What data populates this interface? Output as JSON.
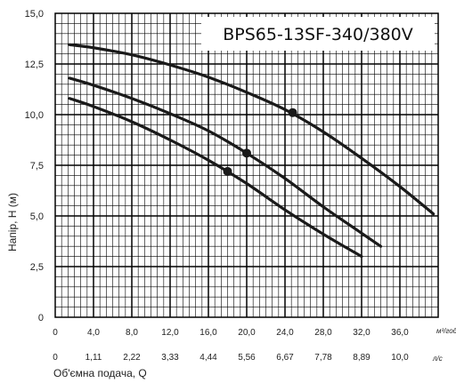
{
  "chart_data": {
    "type": "line",
    "title": "BPS65-13SF-340/380V",
    "ylabel": "Напір, Н (м)",
    "xlabel": "Об'ємна  подача, Q",
    "x_unit_primary": "м³/год",
    "x_unit_secondary": "л/с",
    "xlim": [
      0,
      40
    ],
    "ylim": [
      0,
      15
    ],
    "x_ticks": [
      0,
      4.0,
      8.0,
      12.0,
      16.0,
      20.0,
      24.0,
      28.0,
      32.0,
      36.0
    ],
    "x_tick_labels": [
      "0",
      "4,0",
      "8,0",
      "12,0",
      "16,0",
      "20,0",
      "24,0",
      "28,0",
      "32,0",
      "36,0"
    ],
    "x_ticks_secondary": [
      0,
      4.0,
      8.0,
      12.0,
      16.0,
      20.0,
      24.0,
      28.0,
      32.0,
      36.0
    ],
    "x_tick_labels_secondary": [
      "0",
      "1,11",
      "2,22",
      "3,33",
      "4,44",
      "5,56",
      "6,67",
      "7,78",
      "8,89",
      "10,0"
    ],
    "y_ticks": [
      0,
      2.5,
      5.0,
      7.5,
      10.0,
      12.5,
      15.0
    ],
    "y_tick_labels": [
      "0",
      "2,5",
      "5,0",
      "7,5",
      "10,0",
      "12,5",
      "15,0"
    ],
    "grid": true,
    "series": [
      {
        "x": [
          1.5,
          4,
          8,
          12,
          16,
          20,
          24,
          28,
          32,
          36,
          39.5
        ],
        "y": [
          13.45,
          13.3,
          12.95,
          12.45,
          11.85,
          11.1,
          10.25,
          9.15,
          7.85,
          6.45,
          5.1
        ],
        "marker": {
          "x": 24.8,
          "y": 10.1
        }
      },
      {
        "x": [
          1.5,
          4,
          8,
          12,
          16,
          20,
          24,
          28,
          32,
          34
        ],
        "y": [
          11.8,
          11.45,
          10.8,
          10.05,
          9.2,
          8.1,
          6.85,
          5.45,
          4.15,
          3.5
        ],
        "marker": {
          "x": 20.0,
          "y": 8.1
        }
      },
      {
        "x": [
          1.5,
          4,
          8,
          12,
          16,
          20,
          24,
          28,
          32
        ],
        "y": [
          10.8,
          10.4,
          9.65,
          8.75,
          7.75,
          6.6,
          5.3,
          4.1,
          3.0
        ],
        "marker": {
          "x": 18.0,
          "y": 7.2
        }
      }
    ],
    "colors": {
      "grid": "#000000",
      "curve": "#1a1a1a",
      "frame": "#000000"
    }
  }
}
